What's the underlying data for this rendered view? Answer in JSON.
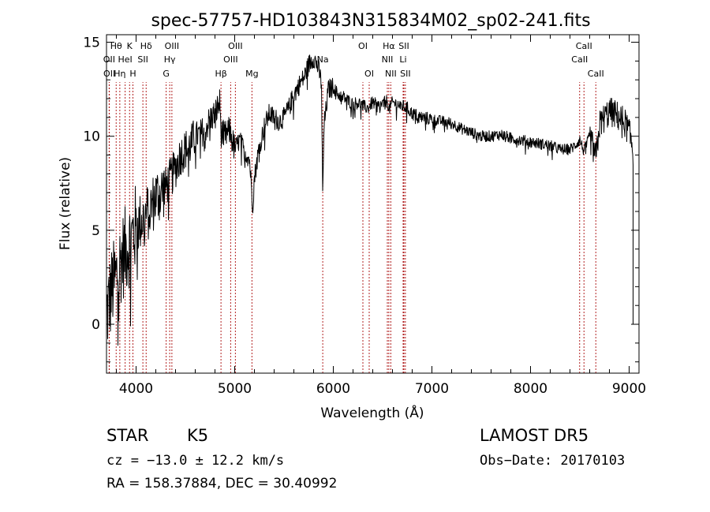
{
  "chart_data": {
    "type": "line",
    "title": "spec-57757-HD103843N315834M02_sp02-241.fits",
    "xlabel": "Wavelength (Å)",
    "ylabel": "Flux (relative)",
    "xlim": [
      3700,
      9100
    ],
    "ylim": [
      -2.6,
      15.4
    ],
    "xticks": [
      4000,
      5000,
      6000,
      7000,
      8000,
      9000
    ],
    "xtick_labels": [
      "4000",
      "5000",
      "6000",
      "7000",
      "8000",
      "9000"
    ],
    "yticks": [
      0,
      5,
      10,
      15
    ],
    "ytick_labels": [
      "0",
      "5",
      "10",
      "15"
    ],
    "grid": false,
    "line_color": "#000000",
    "marker_color": "#b22222",
    "spectrum_anchors": [
      [
        3700,
        0.5
      ],
      [
        3760,
        2.0
      ],
      [
        3800,
        2.5
      ],
      [
        3850,
        3.5
      ],
      [
        3900,
        4.0
      ],
      [
        3950,
        4.5
      ],
      [
        4000,
        5.2
      ],
      [
        4050,
        5.5
      ],
      [
        4100,
        5.8
      ],
      [
        4150,
        6.2
      ],
      [
        4200,
        6.8
      ],
      [
        4250,
        7.0
      ],
      [
        4300,
        7.3
      ],
      [
        4350,
        7.8
      ],
      [
        4400,
        8.3
      ],
      [
        4450,
        9.0
      ],
      [
        4500,
        9.3
      ],
      [
        4550,
        9.5
      ],
      [
        4600,
        10.0
      ],
      [
        4650,
        10.1
      ],
      [
        4700,
        10.4
      ],
      [
        4750,
        10.9
      ],
      [
        4800,
        11.2
      ],
      [
        4850,
        11.8
      ],
      [
        4861,
        10.2
      ],
      [
        4900,
        10.0
      ],
      [
        4950,
        10.3
      ],
      [
        5000,
        9.3
      ],
      [
        5050,
        9.8
      ],
      [
        5100,
        9.2
      ],
      [
        5150,
        8.8
      ],
      [
        5167,
        7.5
      ],
      [
        5183,
        6.3
      ],
      [
        5200,
        7.8
      ],
      [
        5250,
        9.5
      ],
      [
        5300,
        10.5
      ],
      [
        5350,
        11.2
      ],
      [
        5400,
        11.0
      ],
      [
        5450,
        10.8
      ],
      [
        5500,
        11.0
      ],
      [
        5550,
        11.5
      ],
      [
        5600,
        12.2
      ],
      [
        5650,
        12.7
      ],
      [
        5700,
        13.1
      ],
      [
        5750,
        13.8
      ],
      [
        5800,
        14.2
      ],
      [
        5850,
        13.6
      ],
      [
        5880,
        12.8
      ],
      [
        5893,
        6.5
      ],
      [
        5905,
        10.5
      ],
      [
        5950,
        12.5
      ],
      [
        6000,
        12.6
      ],
      [
        6050,
        12.2
      ],
      [
        6100,
        12.1
      ],
      [
        6150,
        11.9
      ],
      [
        6200,
        11.7
      ],
      [
        6250,
        11.8
      ],
      [
        6300,
        11.6
      ],
      [
        6350,
        11.5
      ],
      [
        6400,
        11.8
      ],
      [
        6450,
        11.6
      ],
      [
        6500,
        11.7
      ],
      [
        6550,
        11.9
      ],
      [
        6563,
        11.4
      ],
      [
        6600,
        11.8
      ],
      [
        6650,
        11.7
      ],
      [
        6700,
        11.6
      ],
      [
        6750,
        11.5
      ],
      [
        6800,
        11.2
      ],
      [
        6900,
        11.0
      ],
      [
        7000,
        10.9
      ],
      [
        7100,
        10.8
      ],
      [
        7200,
        10.7
      ],
      [
        7300,
        10.4
      ],
      [
        7400,
        10.2
      ],
      [
        7500,
        10.0
      ],
      [
        7600,
        10.0
      ],
      [
        7700,
        10.1
      ],
      [
        7800,
        9.9
      ],
      [
        7900,
        9.8
      ],
      [
        8000,
        9.7
      ],
      [
        8100,
        9.6
      ],
      [
        8200,
        9.5
      ],
      [
        8300,
        9.3
      ],
      [
        8400,
        9.3
      ],
      [
        8450,
        9.5
      ],
      [
        8500,
        9.8
      ],
      [
        8542,
        9.2
      ],
      [
        8600,
        10.0
      ],
      [
        8662,
        8.8
      ],
      [
        8700,
        10.6
      ],
      [
        8750,
        11.0
      ],
      [
        8800,
        11.3
      ],
      [
        8850,
        11.2
      ],
      [
        8900,
        11.0
      ],
      [
        8950,
        10.8
      ],
      [
        9000,
        10.2
      ],
      [
        9030,
        9.5
      ],
      [
        9040,
        9.0
      ]
    ],
    "lines": [
      {
        "label": "Hθ",
        "wavelength": 3798,
        "row": 1
      },
      {
        "label": "OII",
        "wavelength": 3727,
        "row": 2
      },
      {
        "label": "OII",
        "wavelength": 3729,
        "row": 3
      },
      {
        "label": "Hη",
        "wavelength": 3835,
        "row": 3
      },
      {
        "label": "HeI",
        "wavelength": 3889,
        "row": 2
      },
      {
        "label": "K",
        "wavelength": 3934,
        "row": 1
      },
      {
        "label": "H",
        "wavelength": 3968,
        "row": 3
      },
      {
        "label": "SII",
        "wavelength": 4069,
        "row": 2
      },
      {
        "label": "Hδ",
        "wavelength": 4102,
        "row": 1
      },
      {
        "label": "OIII",
        "wavelength": 4363,
        "row": 1
      },
      {
        "label": "Hγ",
        "wavelength": 4341,
        "row": 2
      },
      {
        "label": "G",
        "wavelength": 4305,
        "row": 3
      },
      {
        "label": "Hβ",
        "wavelength": 4861,
        "row": 3
      },
      {
        "label": "OIII",
        "wavelength": 4959,
        "row": 2
      },
      {
        "label": "OIII",
        "wavelength": 5007,
        "row": 1
      },
      {
        "label": "Mg",
        "wavelength": 5175,
        "row": 3
      },
      {
        "label": "Na",
        "wavelength": 5893,
        "row": 2
      },
      {
        "label": "OI",
        "wavelength": 6300,
        "row": 1
      },
      {
        "label": "OI",
        "wavelength": 6364,
        "row": 3
      },
      {
        "label": "Hα",
        "wavelength": 6563,
        "row": 1
      },
      {
        "label": "NII",
        "wavelength": 6548,
        "row": 2
      },
      {
        "label": "NII",
        "wavelength": 6583,
        "row": 3
      },
      {
        "label": "SII",
        "wavelength": 6716,
        "row": 1
      },
      {
        "label": "Li",
        "wavelength": 6708,
        "row": 2
      },
      {
        "label": "SII",
        "wavelength": 6731,
        "row": 3
      },
      {
        "label": "CaII",
        "wavelength": 8542,
        "row": 1
      },
      {
        "label": "CaII",
        "wavelength": 8498,
        "row": 2
      },
      {
        "label": "CaII",
        "wavelength": 8662,
        "row": 3
      }
    ]
  },
  "info": {
    "object_class": "STAR",
    "subclass": "K5",
    "survey": "LAMOST DR5",
    "cz_text": "cz = −13.0 ± 12.2 km/s",
    "obs_date_text": "Obs−Date: 20170103",
    "radec_text": "RA = 158.37884, DEC =  30.40992"
  }
}
